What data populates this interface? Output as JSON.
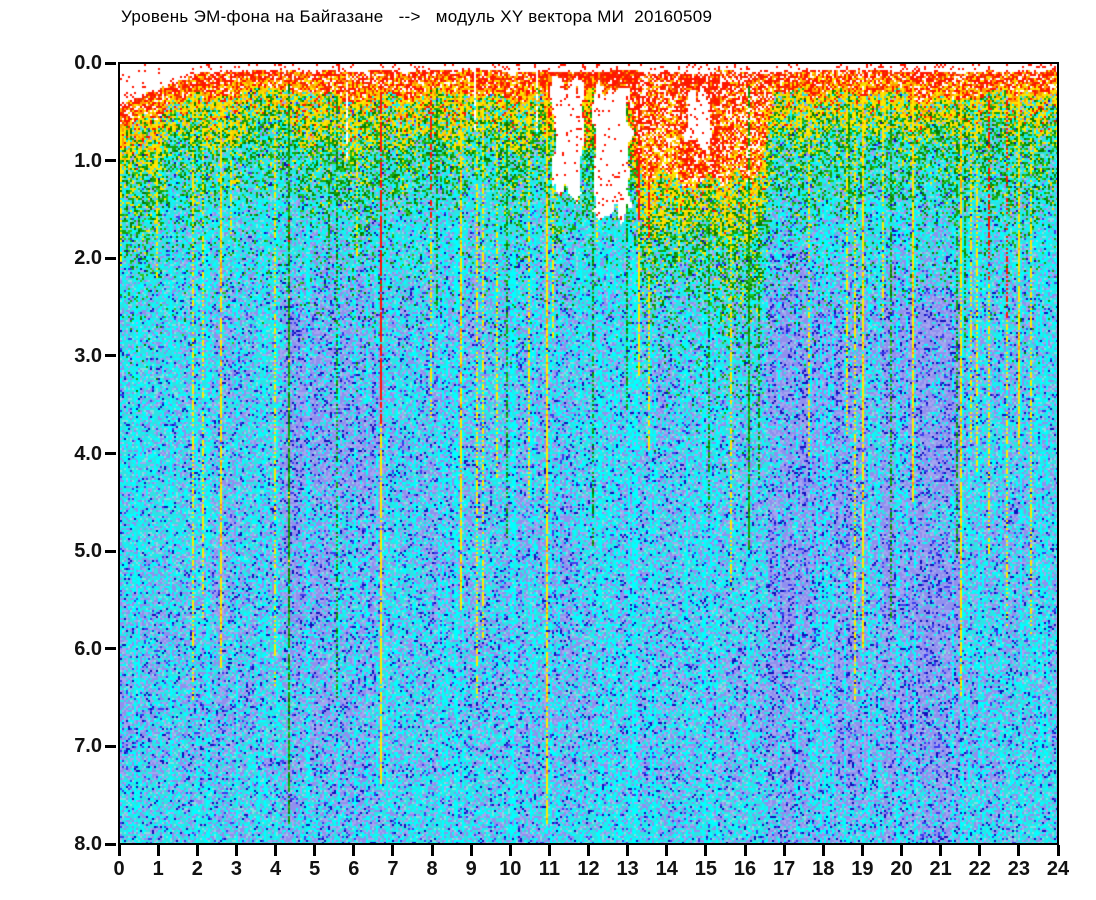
{
  "page": {
    "background": "#ffffff"
  },
  "chart_data": {
    "type": "heatmap",
    "title": "Уровень ЭМ-фона на Байгазане   -->   модуль XY вектора МИ  20160509",
    "xlabel": "",
    "ylabel": "",
    "x_axis": {
      "min": 0,
      "max": 24,
      "tick_step": 1,
      "tick_labels": [
        "0",
        "1",
        "2",
        "3",
        "4",
        "5",
        "6",
        "7",
        "8",
        "9",
        "10",
        "11",
        "12",
        "13",
        "14",
        "15",
        "16",
        "17",
        "18",
        "19",
        "20",
        "21",
        "22",
        "23",
        "24"
      ]
    },
    "y_axis": {
      "min": 0,
      "max": 8,
      "tick_step": 1,
      "inverted": true,
      "tick_labels": [
        "0.0",
        "1.0",
        "2.0",
        "3.0",
        "4.0",
        "5.0",
        "6.0",
        "7.0",
        "8.0"
      ]
    },
    "grid": false,
    "legend": "none",
    "palette": {
      "red": "#ff1600",
      "red2": "#ee3b00",
      "orange": "#ff9c00",
      "yellow": "#ffe800",
      "yellow2": "#f7d600",
      "green": "#12a40e",
      "green2": "#077c00",
      "green3": "#2cc41e",
      "cyan": "#2ee2e4",
      "cyan_bright": "#00ffff",
      "cyan_pale": "#86dede",
      "periwinkle": "#9090ee",
      "periwinkle2": "#a5a5f0",
      "blue": "#3c3cf0",
      "blue_dark": "#1111bc",
      "white": "#ffffff",
      "frame": "#000000",
      "text": "#000000"
    },
    "bands": {
      "top_edge": 0.05,
      "top_edge_noise": 0.05,
      "left_white_wedge": {
        "until_t": 2.2,
        "rate": 0.16
      },
      "red_thickness": 0.24,
      "yellow_thickness": 0.5,
      "green_thickness": 0.85,
      "red_deep_region": {
        "t0": 13.4,
        "t1": 16.4,
        "red_end": 1.02
      }
    },
    "white_gaps": [
      {
        "t0": 11.08,
        "t1": 11.85,
        "d0": 0.2,
        "d1": 1.3
      },
      {
        "t0": 12.12,
        "t1": 13.05,
        "d0": 0.25,
        "d1": 1.55
      },
      {
        "t0": 14.55,
        "t1": 15.15,
        "d0": 0.3,
        "d1": 0.9
      }
    ],
    "white_slit_range": {
      "t0": 5.0,
      "t1": 12.3
    },
    "quiet_regions": [
      [
        0.0,
        1.55,
        0.14
      ],
      [
        1.55,
        2.35,
        0.25
      ],
      [
        2.35,
        3.15,
        0.48
      ],
      [
        3.15,
        4.2,
        0.3
      ],
      [
        4.2,
        6.7,
        0.62
      ],
      [
        6.7,
        7.9,
        0.36
      ],
      [
        7.9,
        9.4,
        0.46
      ],
      [
        9.4,
        10.2,
        0.3
      ],
      [
        10.2,
        11.6,
        0.46
      ],
      [
        11.6,
        12.3,
        0.26
      ],
      [
        12.3,
        14.2,
        0.34
      ],
      [
        14.2,
        16.6,
        0.24
      ],
      [
        16.6,
        19.15,
        0.74
      ],
      [
        19.15,
        19.55,
        0.46
      ],
      [
        19.55,
        21.5,
        0.76
      ],
      [
        21.5,
        22.4,
        0.36
      ],
      [
        22.4,
        23.2,
        0.4
      ],
      [
        23.2,
        24.0,
        0.24
      ]
    ],
    "major_streaks": [
      {
        "t": 2.6,
        "depth": 6.2,
        "color": "yellow"
      },
      {
        "t": 4.35,
        "depth": 7.8,
        "color": "green"
      },
      {
        "t": 6.7,
        "depth": 7.4,
        "color": "red"
      },
      {
        "t": 8.75,
        "depth": 5.6,
        "color": "yellow"
      },
      {
        "t": 10.95,
        "depth": 7.8,
        "color": "yellow"
      },
      {
        "t": 13.3,
        "depth": 3.2,
        "color": "red"
      },
      {
        "t": 16.1,
        "depth": 5.0,
        "color": "green"
      },
      {
        "t": 19.05,
        "depth": 6.0,
        "color": "yellow"
      },
      {
        "t": 20.3,
        "depth": 4.5,
        "color": "yellow"
      },
      {
        "t": 21.55,
        "depth": 6.5,
        "color": "yellow"
      },
      {
        "t": 23.05,
        "depth": 4.0,
        "color": "yellow"
      }
    ]
  }
}
